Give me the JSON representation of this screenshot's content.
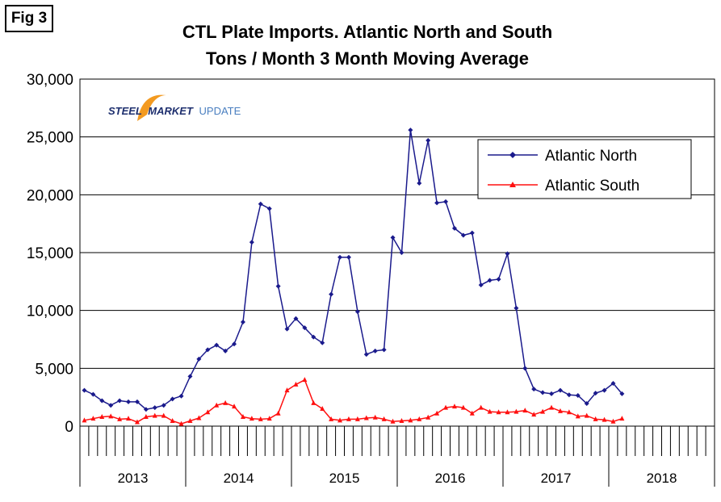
{
  "figure_label": "Fig 3",
  "logo": {
    "part1": "STEEL",
    "part2": "MARKET",
    "part3": "UPDATE"
  },
  "colors": {
    "north": "#1a1a8c",
    "south": "#ff1010",
    "logo_swoosh": "#f39a20",
    "logo_dark": "#1e2f6e",
    "logo_light": "#4a7fc0"
  },
  "chart_data": {
    "type": "line",
    "title": [
      "CTL Plate Imports. Atlantic North and South",
      "Tons / Month 3 Month Moving Average"
    ],
    "xlabel": "",
    "ylabel": "",
    "ylim": [
      0,
      30000
    ],
    "yticks": [
      0,
      5000,
      10000,
      15000,
      20000,
      25000,
      30000
    ],
    "ytick_labels": [
      "0",
      "5,000",
      "10,000",
      "15,000",
      "20,000",
      "25,000",
      "30,000"
    ],
    "years": [
      "2013",
      "2014",
      "2015",
      "2016",
      "2017",
      "2018"
    ],
    "months_per_year": 12,
    "legend": {
      "position": "top-right",
      "entries": [
        "Atlantic North",
        "Atlantic South"
      ]
    },
    "series": [
      {
        "name": "Atlantic North",
        "values": [
          3100,
          2750,
          2200,
          1800,
          2200,
          2100,
          2100,
          1450,
          1600,
          1800,
          2350,
          2600,
          4300,
          5800,
          6600,
          7000,
          6500,
          7100,
          9000,
          15900,
          19200,
          18800,
          12100,
          8400,
          9300,
          8500,
          7700,
          7200,
          11400,
          14600,
          14600,
          9900,
          6200,
          6500,
          6600,
          16300,
          15000,
          25600,
          21000,
          24700,
          19300,
          19400,
          17100,
          16500,
          16700,
          12200,
          12600,
          12700,
          14900,
          10200,
          5000,
          3200,
          2900,
          2800,
          3100,
          2700,
          2650,
          1950,
          2850,
          3100,
          3700,
          2800
        ]
      },
      {
        "name": "Atlantic South",
        "values": [
          500,
          650,
          800,
          850,
          600,
          650,
          350,
          800,
          900,
          900,
          450,
          200,
          450,
          700,
          1200,
          1800,
          2000,
          1700,
          800,
          650,
          600,
          650,
          1100,
          3100,
          3600,
          4000,
          2000,
          1500,
          600,
          500,
          600,
          600,
          700,
          750,
          600,
          400,
          450,
          500,
          600,
          750,
          1100,
          1600,
          1700,
          1600,
          1100,
          1600,
          1250,
          1200,
          1200,
          1250,
          1350,
          1000,
          1250,
          1600,
          1300,
          1200,
          850,
          900,
          600,
          550,
          400,
          650
        ]
      }
    ]
  }
}
